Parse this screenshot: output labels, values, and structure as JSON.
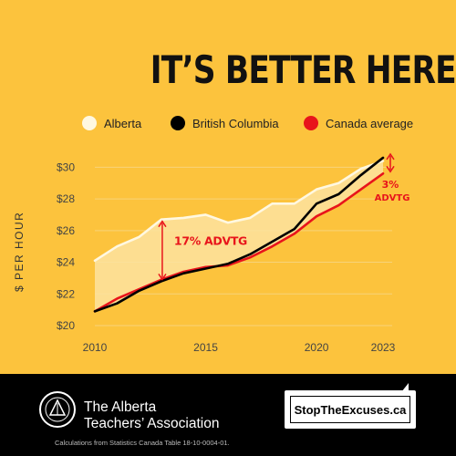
{
  "headline": "IT’S BETTER HERE?",
  "legend": [
    {
      "label": "Alberta",
      "color": "#fff8e1"
    },
    {
      "label": "British Columbia",
      "color": "#000000"
    },
    {
      "label": "Canada average",
      "color": "#e8141b"
    }
  ],
  "colors": {
    "background": "#fcc33d",
    "alberta": "#fff8e1",
    "bc": "#000000",
    "canada": "#e8141b",
    "fill": "#fde3a0"
  },
  "chart_data": {
    "type": "line",
    "ylabel": "$ PER HOUR",
    "xlim": [
      2010,
      2023
    ],
    "ylim": [
      20,
      31
    ],
    "x_ticks": [
      {
        "value": 2010,
        "label": "2010"
      },
      {
        "value": 2015,
        "label": "2015"
      },
      {
        "value": 2020,
        "label": "2020"
      },
      {
        "value": 2023,
        "label": "2023"
      }
    ],
    "y_ticks": [
      {
        "value": 20,
        "label": "$20"
      },
      {
        "value": 22,
        "label": "$22"
      },
      {
        "value": 24,
        "label": "$24"
      },
      {
        "value": 26,
        "label": "$26"
      },
      {
        "value": 28,
        "label": "$28"
      },
      {
        "value": 30,
        "label": "$30"
      }
    ],
    "x": [
      2010,
      2011,
      2012,
      2013,
      2014,
      2015,
      2016,
      2017,
      2018,
      2019,
      2020,
      2021,
      2022,
      2023
    ],
    "series": [
      {
        "name": "Alberta",
        "values": [
          24.1,
          25.0,
          25.6,
          26.7,
          26.8,
          27.0,
          26.5,
          26.8,
          27.7,
          27.7,
          28.6,
          29.0,
          29.9,
          30.4
        ]
      },
      {
        "name": "British Columbia",
        "values": [
          20.9,
          21.4,
          22.2,
          22.8,
          23.3,
          23.6,
          23.9,
          24.5,
          25.3,
          26.1,
          27.7,
          28.3,
          29.5,
          30.6
        ]
      },
      {
        "name": "Canada average",
        "values": [
          20.9,
          21.7,
          22.3,
          22.9,
          23.4,
          23.7,
          23.8,
          24.3,
          25.0,
          25.8,
          26.9,
          27.6,
          28.6,
          29.6
        ]
      }
    ],
    "annotations": [
      {
        "text": "17% ADVTG",
        "x": 2013,
        "y_from": 22.8,
        "y_to": 26.7
      },
      {
        "text_lines": [
          "3%",
          "ADVTG"
        ],
        "x": 2023,
        "y_from": 29.6,
        "y_to": 30.6
      }
    ]
  },
  "footer": {
    "org_line1": "The Alberta",
    "org_line2": "Teachers’ Association",
    "cta": "StopTheExcuses.ca",
    "source": "Calculations from Statistics Canada Table 18-10-0004-01."
  }
}
